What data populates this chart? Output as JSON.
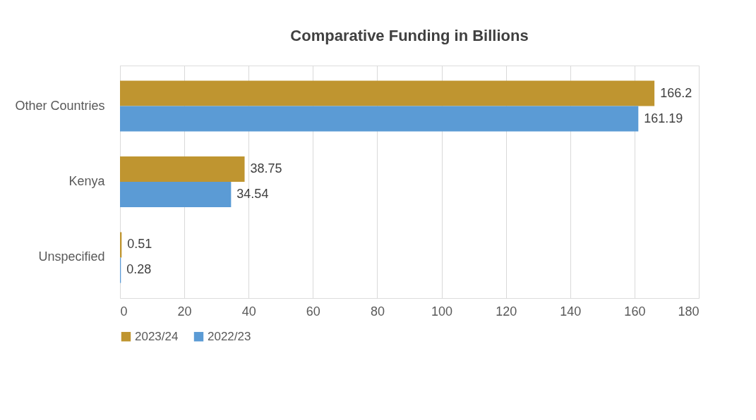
{
  "chart_data": {
    "type": "bar",
    "orientation": "horizontal",
    "title": "Comparative Funding in Billions",
    "categories": [
      "Other Countries",
      "Kenya",
      "Unspecified"
    ],
    "series": [
      {
        "name": "2023/24",
        "color": "#bf9530",
        "values": [
          166.2,
          38.75,
          0.51
        ]
      },
      {
        "name": "2022/23",
        "color": "#5b9bd5",
        "values": [
          161.19,
          34.54,
          0.28
        ]
      }
    ],
    "xlim": [
      0,
      180
    ],
    "xticks": [
      0,
      20,
      40,
      60,
      80,
      100,
      120,
      140,
      160,
      180
    ],
    "grid": "x",
    "legend": "bottom",
    "data_labels": true
  }
}
